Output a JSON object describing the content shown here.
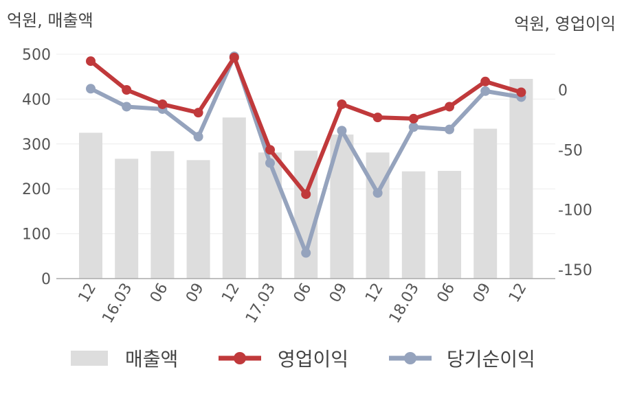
{
  "chart_data": {
    "type": "bar+line",
    "categories": [
      "12",
      "16.03",
      "06",
      "09",
      "12",
      "17.03",
      "06",
      "09",
      "12",
      "18.03",
      "06",
      "09",
      "12"
    ],
    "left_axis": {
      "label": "억원, 매출액",
      "min": 0,
      "max": 500,
      "ticks": [
        "0",
        "100",
        "200",
        "300",
        "400",
        "500"
      ]
    },
    "right_axis": {
      "label": "억원, 영업이익",
      "min": -160,
      "max": 15,
      "ticks": [
        "0",
        "-50",
        "-100",
        "-150"
      ]
    },
    "series": [
      {
        "name": "매출액",
        "kind": "bar",
        "axis": "left",
        "color": "#dddddd",
        "values": [
          325,
          267,
          284,
          264,
          359,
          281,
          285,
          321,
          281,
          239,
          240,
          334,
          445
        ]
      },
      {
        "name": "영업이익",
        "kind": "line",
        "axis": "right",
        "color": "#c0393b",
        "values": [
          24,
          0,
          -12,
          -19,
          27,
          -50,
          -87,
          -12,
          -23,
          -24,
          -14,
          7,
          -2
        ]
      },
      {
        "name": "당기순이익",
        "kind": "line",
        "axis": "right",
        "color": "#95a3bd",
        "values": [
          1,
          -14,
          -16,
          -39,
          28,
          -61,
          -136,
          -34,
          -86,
          -31,
          -33,
          -1,
          -6
        ]
      }
    ],
    "grid": true,
    "legend": "bottom"
  }
}
